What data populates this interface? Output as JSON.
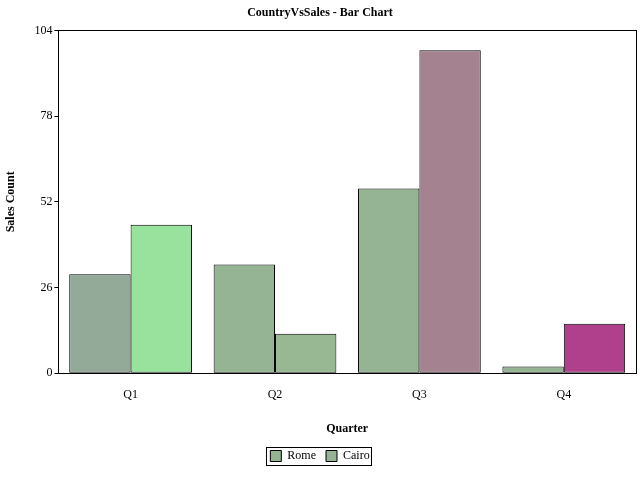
{
  "chart_data": {
    "type": "bar",
    "title": "CountryVsSales - Bar Chart",
    "x_label": "Quarter",
    "y_label": "Sales Count",
    "categories": [
      "Q1",
      "Q2",
      "Q3",
      "Q4"
    ],
    "series": [
      {
        "name": "Rome",
        "color": "#94b494",
        "colors": [
          "#93aa98",
          "#94b494",
          "#94b494",
          "#94b494"
        ],
        "values": [
          30,
          33,
          56,
          2
        ]
      },
      {
        "name": "Cairo",
        "color": "#94b494",
        "colors": [
          "#98e29e",
          "#98b894",
          "#a5828f",
          "#b0408c"
        ],
        "values": [
          45,
          12,
          98,
          15
        ]
      }
    ],
    "ylim": [
      0,
      104
    ],
    "yticks": [
      0,
      26,
      52,
      78,
      104
    ],
    "grid": false,
    "legend": "bottom"
  }
}
